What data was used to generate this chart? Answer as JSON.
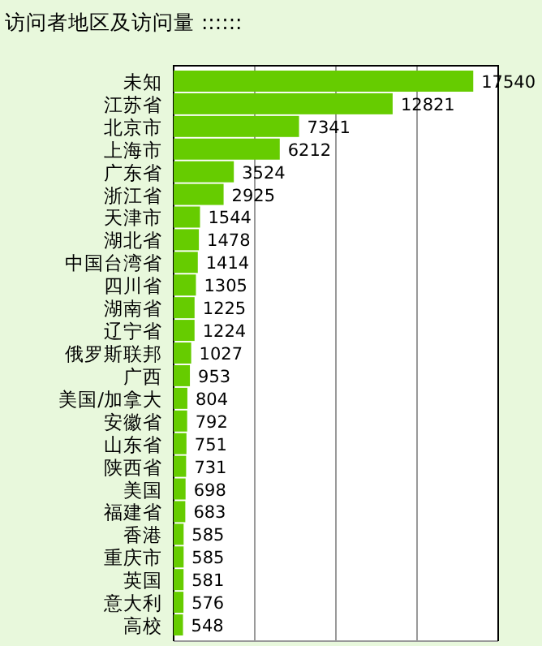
{
  "chart_data": {
    "type": "bar",
    "orientation": "horizontal",
    "title": "访问者地区及访问量 ::::::",
    "categories": [
      "未知",
      "江苏省",
      "北京市",
      "上海市",
      "广东省",
      "浙江省",
      "天津市",
      "湖北省",
      "中国台湾省",
      "四川省",
      "湖南省",
      "辽宁省",
      "俄罗斯联邦",
      "广西",
      "美国/加拿大",
      "安徽省",
      "山东省",
      "陕西省",
      "美国",
      "福建省",
      "香港",
      "重庆市",
      "英国",
      "意大利",
      "高校"
    ],
    "values": [
      17540,
      12821,
      7341,
      6212,
      3524,
      2925,
      1544,
      1478,
      1414,
      1305,
      1225,
      1224,
      1027,
      953,
      804,
      792,
      751,
      731,
      698,
      683,
      585,
      585,
      581,
      576,
      548
    ],
    "color": "#66cc00",
    "data_labels": true,
    "grid": "x",
    "xlim": [
      0,
      19000
    ],
    "xticks": [
      {
        "value": 4750,
        "label": null
      },
      {
        "value": 9500,
        "label": null
      },
      {
        "value": 14250,
        "label": null
      }
    ]
  }
}
